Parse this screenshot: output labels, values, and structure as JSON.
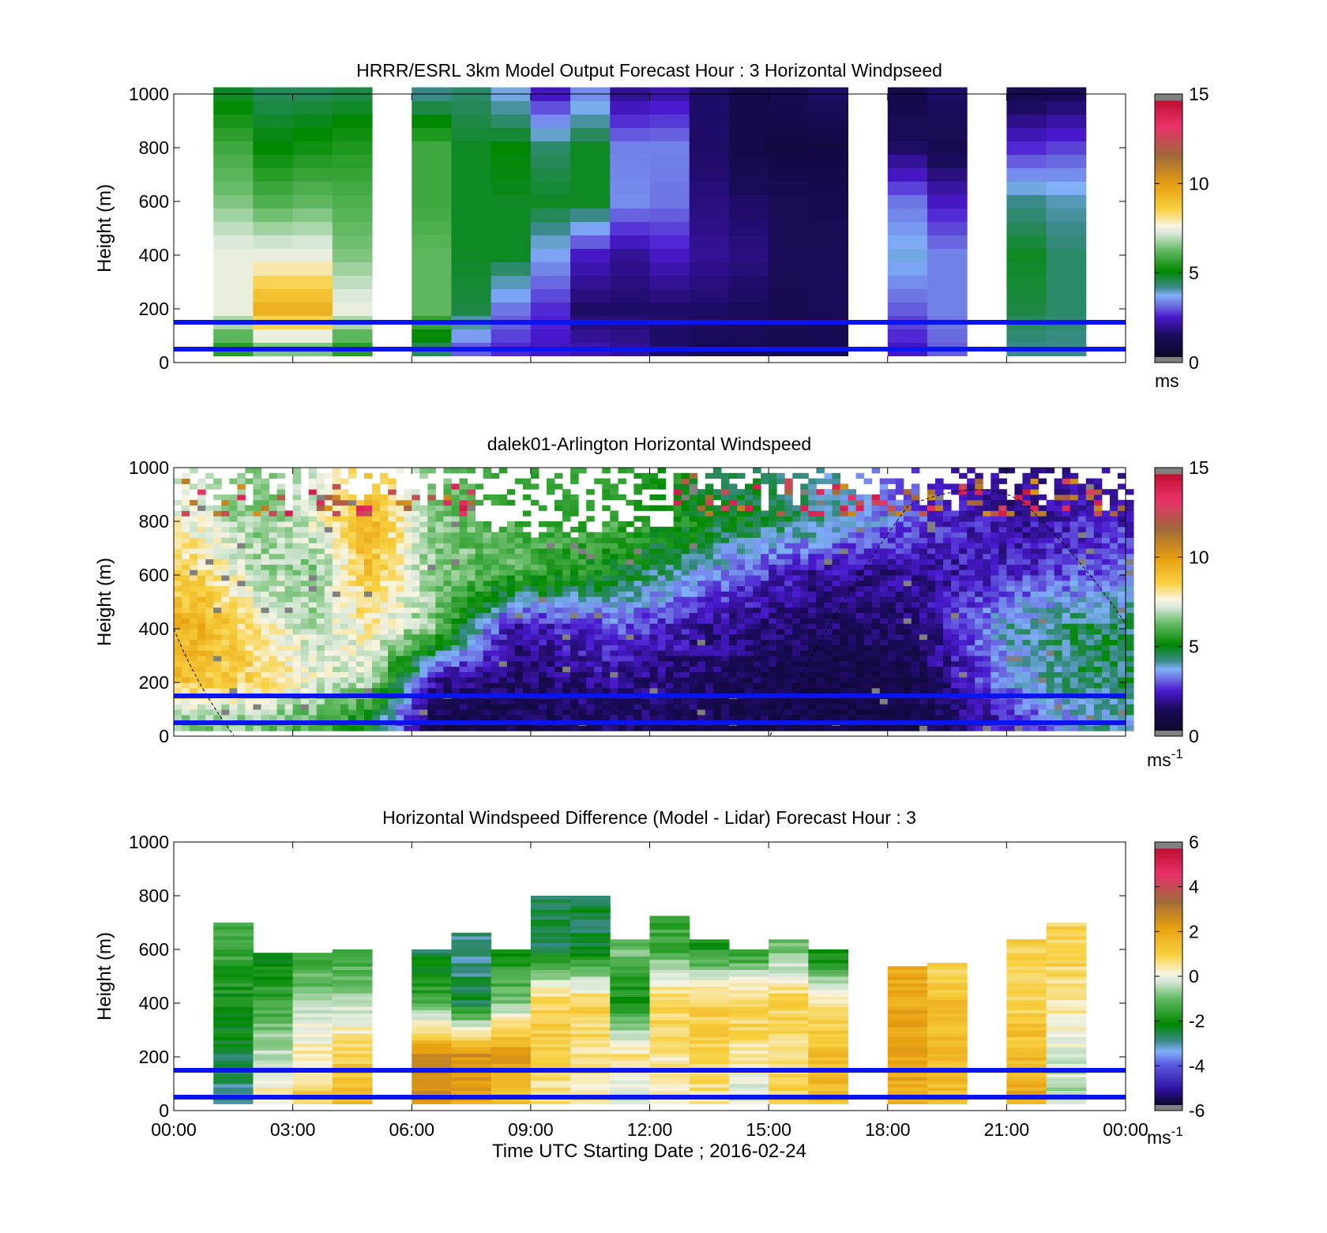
{
  "figure": {
    "xlabel": "Time UTC  Starting Date ; 2016-02-24",
    "x_ticks": [
      "00:00",
      "03:00",
      "06:00",
      "09:00",
      "12:00",
      "15:00",
      "18:00",
      "21:00",
      "00:00"
    ]
  },
  "chart_data": [
    {
      "type": "heatmap",
      "title": "HRRR/ESRL 3km Model Output   Forecast Hour : 3 Horizontal Windpseed",
      "ylabel": "Height (m)",
      "ylim": [
        0,
        1000
      ],
      "xlim_hours": [
        0,
        24
      ],
      "y_ticks": [
        "0",
        "200",
        "400",
        "600",
        "800",
        "1000"
      ],
      "colorbar": {
        "ticks": [
          "0",
          "5",
          "10",
          "15"
        ],
        "range": [
          0,
          15
        ],
        "unit": "ms"
      },
      "reference_lines_height_m": [
        50,
        150
      ],
      "missing_hour_columns": [
        0,
        5,
        17,
        20,
        23
      ],
      "approx_profiles_by_hour": [
        {
          "hour": 1,
          "levels_m": [
            50,
            200,
            400,
            600,
            800,
            1000
          ],
          "speed": [
            5.5,
            7.5,
            7.5,
            6.5,
            5.8,
            4.8
          ]
        },
        {
          "hour": 2,
          "levels_m": [
            50,
            200,
            400,
            600,
            800,
            1000
          ],
          "speed": [
            6.5,
            9.5,
            7.5,
            6.0,
            5.0,
            4.5
          ]
        },
        {
          "hour": 3,
          "levels_m": [
            50,
            200,
            400,
            600,
            800,
            1000
          ],
          "speed": [
            6.5,
            9.5,
            7.5,
            6.2,
            5.2,
            4.5
          ]
        },
        {
          "hour": 4,
          "levels_m": [
            50,
            200,
            400,
            600,
            800,
            1000
          ],
          "speed": [
            5.5,
            7.5,
            6.5,
            6.0,
            5.4,
            4.6
          ]
        },
        {
          "hour": 6,
          "levels_m": [
            50,
            200,
            400,
            600,
            800,
            1000
          ],
          "speed": [
            4.5,
            6.2,
            6.2,
            5.8,
            5.8,
            4.2
          ]
        },
        {
          "hour": 7,
          "levels_m": [
            50,
            200,
            400,
            600,
            800,
            1000
          ],
          "speed": [
            3.0,
            4.6,
            4.8,
            4.8,
            4.8,
            4.4
          ]
        },
        {
          "hour": 8,
          "levels_m": [
            50,
            200,
            400,
            600,
            800,
            1000
          ],
          "speed": [
            2.6,
            3.2,
            4.8,
            4.8,
            5.0,
            3.8
          ]
        },
        {
          "hour": 9,
          "levels_m": [
            50,
            200,
            400,
            600,
            800,
            1000
          ],
          "speed": [
            2.4,
            2.6,
            3.6,
            4.8,
            4.4,
            2.4
          ]
        },
        {
          "hour": 10,
          "levels_m": [
            50,
            200,
            400,
            600,
            800,
            1000
          ],
          "speed": [
            2.2,
            1.6,
            2.4,
            4.8,
            4.8,
            3.4
          ]
        },
        {
          "hour": 11,
          "levels_m": [
            50,
            200,
            400,
            600,
            800,
            1000
          ],
          "speed": [
            2.0,
            1.6,
            2.0,
            3.4,
            3.3,
            2.0
          ]
        },
        {
          "hour": 12,
          "levels_m": [
            50,
            200,
            400,
            600,
            800,
            1000
          ],
          "speed": [
            1.6,
            1.6,
            2.4,
            3.2,
            3.3,
            2.2
          ]
        },
        {
          "hour": 13,
          "levels_m": [
            50,
            200,
            400,
            600,
            800,
            1000
          ],
          "speed": [
            1.4,
            1.6,
            2.0,
            1.8,
            1.6,
            1.6
          ]
        },
        {
          "hour": 14,
          "levels_m": [
            50,
            200,
            400,
            600,
            800,
            1000
          ],
          "speed": [
            1.4,
            1.5,
            1.8,
            1.6,
            1.0,
            1.0
          ]
        },
        {
          "hour": 15,
          "levels_m": [
            50,
            200,
            400,
            600,
            800,
            1000
          ],
          "speed": [
            1.2,
            1.2,
            1.4,
            1.3,
            0.8,
            1.2
          ]
        },
        {
          "hour": 16,
          "levels_m": [
            50,
            200,
            400,
            600,
            800,
            1000
          ],
          "speed": [
            1.2,
            1.4,
            1.4,
            1.2,
            0.8,
            1.6
          ]
        },
        {
          "hour": 18,
          "levels_m": [
            50,
            200,
            400,
            600,
            800,
            1000
          ],
          "speed": [
            2.4,
            3.0,
            3.8,
            3.2,
            1.6,
            1.0
          ]
        },
        {
          "hour": 19,
          "levels_m": [
            50,
            200,
            400,
            600,
            800,
            1000
          ],
          "speed": [
            3.0,
            3.3,
            3.3,
            2.4,
            1.2,
            1.6
          ]
        },
        {
          "hour": 21,
          "levels_m": [
            50,
            200,
            400,
            600,
            800,
            1000
          ],
          "speed": [
            4.2,
            4.6,
            4.8,
            4.2,
            2.6,
            1.2
          ]
        },
        {
          "hour": 22,
          "levels_m": [
            50,
            200,
            400,
            600,
            800,
            1000
          ],
          "speed": [
            4.2,
            4.4,
            4.4,
            4.0,
            2.8,
            1.4
          ]
        }
      ]
    },
    {
      "type": "heatmap",
      "title": "dalek01-Arlington  Horizontal Windspeed",
      "ylabel": "Height (m)",
      "ylim": [
        0,
        1000
      ],
      "xlim_hours": [
        0,
        24
      ],
      "y_ticks": [
        "0",
        "200",
        "400",
        "600",
        "800",
        "1000"
      ],
      "colorbar": {
        "ticks": [
          "0",
          "5",
          "10",
          "15"
        ],
        "range": [
          0,
          15
        ],
        "unit": "ms",
        "unit_exponent": "-1"
      },
      "reference_lines_height_m": [
        50,
        150
      ],
      "approx_profiles_by_hour": [
        {
          "hour": 0.5,
          "levels_m": [
            50,
            200,
            400,
            600,
            800
          ],
          "speed": [
            6.5,
            9.0,
            9.5,
            8.5,
            7.5
          ]
        },
        {
          "hour": 2.0,
          "levels_m": [
            50,
            200,
            400,
            600,
            800
          ],
          "speed": [
            6.5,
            8.5,
            8.0,
            7.0,
            6.5
          ]
        },
        {
          "hour": 3.5,
          "levels_m": [
            50,
            200,
            400,
            600,
            800
          ],
          "speed": [
            6.0,
            7.5,
            7.0,
            6.5,
            7.5
          ]
        },
        {
          "hour": 4.8,
          "levels_m": [
            50,
            200,
            400,
            600,
            800
          ],
          "speed": [
            5.0,
            7.0,
            8.0,
            9.0,
            9.5
          ]
        },
        {
          "hour": 6.5,
          "levels_m": [
            50,
            200,
            400,
            600,
            800
          ],
          "speed": [
            1.0,
            2.0,
            6.5,
            6.5,
            6.5
          ]
        },
        {
          "hour": 8.5,
          "levels_m": [
            50,
            200,
            400,
            600,
            800
          ],
          "speed": [
            1.2,
            1.5,
            2.0,
            6.0,
            6.0
          ]
        },
        {
          "hour": 11.0,
          "levels_m": [
            50,
            200,
            400,
            600,
            800
          ],
          "speed": [
            1.5,
            2.0,
            3.0,
            5.0,
            6.0
          ]
        },
        {
          "hour": 13.5,
          "levels_m": [
            50,
            200,
            400,
            600,
            800
          ],
          "speed": [
            1.2,
            1.5,
            2.0,
            3.5,
            5.0
          ]
        },
        {
          "hour": 16.0,
          "levels_m": [
            50,
            200,
            400,
            600,
            800
          ],
          "speed": [
            1.0,
            1.0,
            1.5,
            2.0,
            4.5
          ]
        },
        {
          "hour": 18.5,
          "levels_m": [
            50,
            200,
            400,
            600,
            800
          ],
          "speed": [
            1.0,
            1.0,
            1.5,
            2.0,
            3.0
          ]
        },
        {
          "hour": 21.0,
          "levels_m": [
            50,
            200,
            400,
            600,
            800
          ],
          "speed": [
            2.5,
            3.5,
            4.0,
            2.5,
            2.0
          ]
        },
        {
          "hour": 23.0,
          "levels_m": [
            50,
            200,
            400,
            600,
            800
          ],
          "speed": [
            4.0,
            4.5,
            4.5,
            3.0,
            2.5
          ]
        }
      ]
    },
    {
      "type": "heatmap",
      "title": "Horizontal Windspeed Difference (Model - Lidar) Forecast Hour : 3",
      "ylabel": "Height (m)",
      "ylim": [
        0,
        1000
      ],
      "xlim_hours": [
        0,
        24
      ],
      "y_ticks": [
        "0",
        "200",
        "400",
        "600",
        "800",
        "1000"
      ],
      "colorbar": {
        "ticks": [
          "-6",
          "-4",
          "-2",
          "0",
          "2",
          "4",
          "6"
        ],
        "range": [
          -6,
          6
        ],
        "unit": "ms",
        "unit_exponent": "-1"
      },
      "reference_lines_height_m": [
        50,
        150
      ],
      "approx_profiles_by_hour": [
        {
          "hour": 1,
          "top_m": 690,
          "levels_m": [
            50,
            200,
            400,
            600
          ],
          "diff": [
            -3.0,
            -2.5,
            -2.0,
            -1.5
          ]
        },
        {
          "hour": 2,
          "top_m": 580,
          "levels_m": [
            50,
            200,
            400,
            600
          ],
          "diff": [
            0.3,
            -0.5,
            -1.5,
            -2.5
          ]
        },
        {
          "hour": 3,
          "top_m": 580,
          "levels_m": [
            50,
            200,
            400,
            600
          ],
          "diff": [
            1.0,
            0.3,
            -0.5,
            -2.0
          ]
        },
        {
          "hour": 4,
          "top_m": 600,
          "levels_m": [
            50,
            200,
            400,
            600
          ],
          "diff": [
            1.5,
            1.0,
            -0.5,
            -1.5
          ]
        },
        {
          "hour": 6,
          "top_m": 600,
          "levels_m": [
            50,
            200,
            400,
            600
          ],
          "diff": [
            2.5,
            2.5,
            -1.5,
            -2.5
          ]
        },
        {
          "hour": 7,
          "top_m": 660,
          "levels_m": [
            50,
            200,
            400,
            600
          ],
          "diff": [
            2.0,
            2.5,
            -2.5,
            -3.0
          ]
        },
        {
          "hour": 8,
          "top_m": 600,
          "levels_m": [
            50,
            200,
            400,
            600
          ],
          "diff": [
            1.5,
            2.5,
            -1.0,
            -2.0
          ]
        },
        {
          "hour": 9,
          "top_m": 790,
          "levels_m": [
            50,
            200,
            400,
            600
          ],
          "diff": [
            0.5,
            1.0,
            1.0,
            -2.5
          ]
        },
        {
          "hour": 10,
          "top_m": 790,
          "levels_m": [
            50,
            200,
            400,
            600
          ],
          "diff": [
            0.3,
            0.5,
            1.0,
            -2.5
          ]
        },
        {
          "hour": 11,
          "top_m": 630,
          "levels_m": [
            50,
            200,
            400,
            600
          ],
          "diff": [
            -0.5,
            0.5,
            -2.0,
            -1.0
          ]
        },
        {
          "hour": 12,
          "top_m": 720,
          "levels_m": [
            50,
            200,
            400,
            600
          ],
          "diff": [
            0.3,
            0.5,
            1.0,
            -1.5
          ]
        },
        {
          "hour": 13,
          "top_m": 630,
          "levels_m": [
            50,
            200,
            400,
            600
          ],
          "diff": [
            0.5,
            1.0,
            1.0,
            -2.0
          ]
        },
        {
          "hour": 14,
          "top_m": 600,
          "levels_m": [
            50,
            200,
            400,
            600
          ],
          "diff": [
            -0.3,
            0.5,
            1.0,
            -2.0
          ]
        },
        {
          "hour": 15,
          "top_m": 630,
          "levels_m": [
            50,
            200,
            400,
            600
          ],
          "diff": [
            1.0,
            0.5,
            1.0,
            -1.0
          ]
        },
        {
          "hour": 16,
          "top_m": 600,
          "levels_m": [
            50,
            200,
            400,
            600
          ],
          "diff": [
            1.5,
            1.5,
            0.5,
            -2.5
          ]
        },
        {
          "hour": 18,
          "top_m": 530,
          "levels_m": [
            50,
            200,
            400,
            500
          ],
          "diff": [
            2.0,
            2.0,
            2.0,
            2.0
          ]
        },
        {
          "hour": 19,
          "top_m": 540,
          "levels_m": [
            50,
            200,
            400,
            500
          ],
          "diff": [
            1.5,
            1.5,
            1.5,
            1.0
          ]
        },
        {
          "hour": 21,
          "top_m": 630,
          "levels_m": [
            50,
            200,
            400,
            600
          ],
          "diff": [
            2.0,
            1.5,
            1.0,
            1.0
          ]
        },
        {
          "hour": 22,
          "top_m": 690,
          "levels_m": [
            50,
            200,
            400,
            600
          ],
          "diff": [
            -0.5,
            -0.3,
            0.5,
            1.0
          ]
        }
      ]
    }
  ]
}
